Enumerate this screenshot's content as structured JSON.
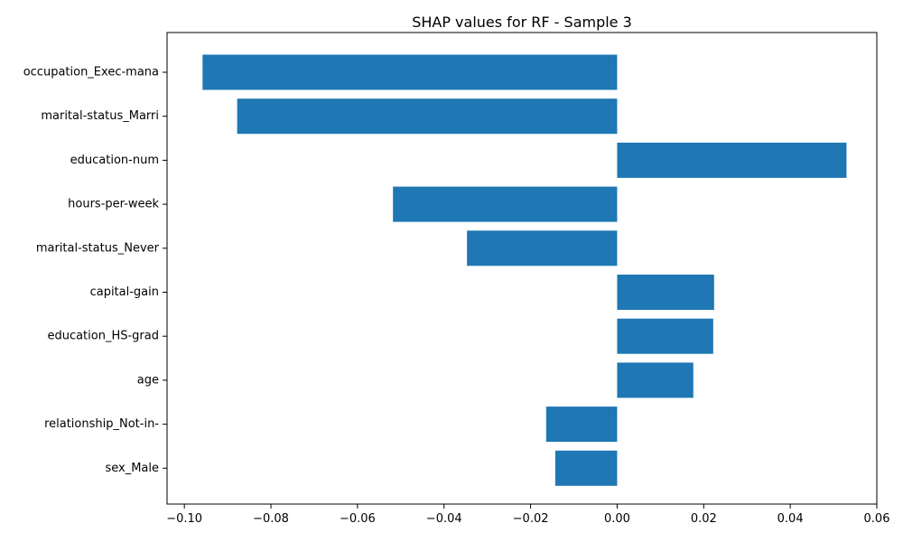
{
  "chart_data": {
    "type": "bar",
    "orientation": "horizontal",
    "title": "SHAP values for RF - Sample 3",
    "xlabel": "",
    "ylabel": "",
    "categories": [
      "occupation_Exec-mana",
      "marital-status_Marri",
      "education-num",
      "hours-per-week",
      "marital-status_Never",
      "capital-gain",
      "education_HS-grad",
      "age",
      "relationship_Not-in-",
      "sex_Male"
    ],
    "values": [
      -0.0958,
      -0.0878,
      0.053,
      -0.0518,
      -0.0347,
      0.0224,
      0.0222,
      0.0176,
      -0.0164,
      -0.0143
    ],
    "xlim": [
      -0.104,
      0.06
    ],
    "xticks": [
      -0.1,
      -0.08,
      -0.06,
      -0.04,
      -0.02,
      0.0,
      0.02,
      0.04,
      0.06
    ],
    "xtick_labels": [
      "−0.10",
      "−0.08",
      "−0.06",
      "−0.04",
      "−0.02",
      "0.00",
      "0.02",
      "0.04",
      "0.06"
    ],
    "grid": false,
    "bar_color": "#1f77b4"
  }
}
